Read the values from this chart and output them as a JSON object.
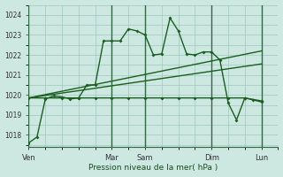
{
  "background_color": "#cce8e0",
  "grid_color": "#a0c8c0",
  "line_color": "#1a5e20",
  "sep_line_color": "#336644",
  "x_tick_labels": [
    "Ven",
    "Mar",
    "Sam",
    "Dim",
    "Lun"
  ],
  "x_tick_positions": [
    0,
    60,
    84,
    132,
    168
  ],
  "x_sep_lines": [
    0,
    60,
    84,
    132,
    168
  ],
  "xlabel": "Pression niveau de la mer( hPa )",
  "ylim": [
    1017.4,
    1024.5
  ],
  "yticks": [
    1018,
    1019,
    1020,
    1021,
    1022,
    1023,
    1024
  ],
  "xlim": [
    0,
    180
  ],
  "series1": {
    "x": [
      0,
      6,
      12,
      18,
      24,
      30,
      36,
      42,
      48,
      54,
      60,
      66,
      72,
      78,
      84,
      90,
      96,
      102,
      108,
      114,
      120,
      126,
      132,
      138,
      144,
      150,
      156,
      162,
      168
    ],
    "y": [
      1017.6,
      1017.9,
      1019.8,
      1019.95,
      1019.9,
      1019.8,
      1019.85,
      1020.5,
      1020.5,
      1022.7,
      1022.7,
      1022.7,
      1023.3,
      1023.2,
      1023.0,
      1022.0,
      1022.05,
      1023.85,
      1023.2,
      1022.05,
      1022.0,
      1022.15,
      1022.15,
      1021.75,
      1019.6,
      1018.75,
      1019.85,
      1019.75,
      1019.65
    ]
  },
  "series2": {
    "x": [
      0,
      12,
      24,
      36,
      48,
      60,
      72,
      84,
      96,
      108,
      120,
      132,
      144,
      156,
      168
    ],
    "y": [
      1019.85,
      1019.85,
      1019.85,
      1019.85,
      1019.85,
      1019.85,
      1019.85,
      1019.85,
      1019.85,
      1019.85,
      1019.85,
      1019.85,
      1019.85,
      1019.85,
      1019.7
    ]
  },
  "series3": {
    "x": [
      0,
      168
    ],
    "y": [
      1019.85,
      1022.2
    ]
  },
  "series4": {
    "x": [
      0,
      168
    ],
    "y": [
      1019.85,
      1021.55
    ]
  }
}
